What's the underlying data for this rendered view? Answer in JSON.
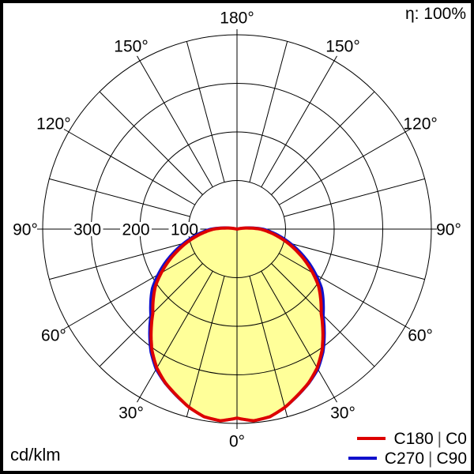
{
  "header": {
    "efficiency": "η: 100%"
  },
  "footer": {
    "unit": "cd/klm"
  },
  "legend": {
    "items": [
      {
        "label_parts": [
          "C180",
          "|",
          "C0"
        ],
        "color": "#dd0000"
      },
      {
        "label_parts": [
          "C270",
          "|",
          "C90"
        ],
        "color": "#1010cc"
      }
    ]
  },
  "chart_data": {
    "type": "polar",
    "subtype": "luminous-intensity-distribution",
    "title": "",
    "unit": "cd/klm",
    "efficiency_label": "η: 100%",
    "angle_labels": [
      "0°",
      "30°",
      "60°",
      "90°",
      "120°",
      "150°",
      "180°"
    ],
    "angle_label_step_deg": 30,
    "spoke_step_deg": 15,
    "radial_rings": [
      100,
      200,
      300,
      400
    ],
    "radial_tick_labels": [
      "100",
      "200",
      "300"
    ],
    "radial_axis_max": 400,
    "gamma_deg": [
      0,
      5,
      10,
      15,
      20,
      25,
      30,
      35,
      40,
      45,
      50,
      55,
      60,
      65,
      70,
      75,
      80,
      85,
      90,
      95,
      100,
      105
    ],
    "series": [
      {
        "name": "C180 | C0",
        "color": "#dd0000",
        "values": [
          389,
          396,
          392,
          380,
          364,
          349,
          330,
          305,
          275,
          245,
          225,
          205,
          180,
          155,
          130,
          107,
          85,
          65,
          48,
          25,
          8,
          0
        ]
      },
      {
        "name": "C270 | C90",
        "color": "#1010cc",
        "values": [
          389,
          396,
          392,
          380,
          365,
          350,
          333,
          309,
          280,
          251,
          232,
          213,
          188,
          163,
          138,
          114,
          92,
          72,
          54,
          30,
          11,
          0
        ]
      }
    ],
    "fill_color": "#ffff99",
    "grid_color": "#000000",
    "legend_position": "bottom-right"
  }
}
